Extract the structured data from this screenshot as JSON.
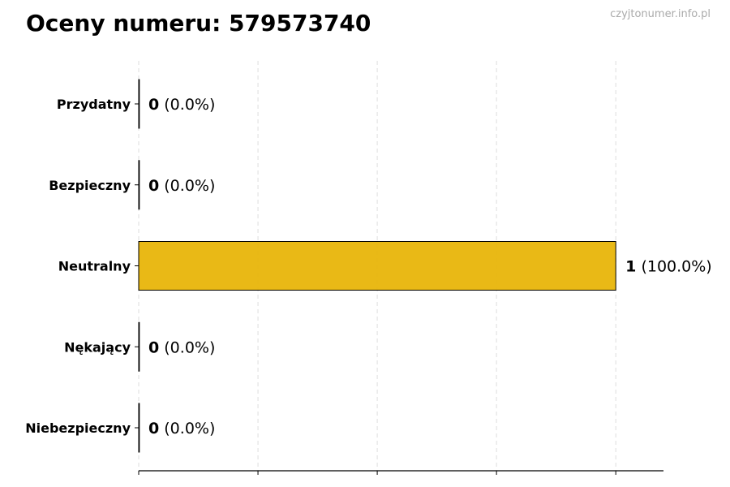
{
  "chart_data": {
    "type": "bar",
    "orientation": "horizontal",
    "title": "Oceny numeru: 579573740",
    "categories": [
      "Przydatny",
      "Bezpieczny",
      "Neutralny",
      "Nękający",
      "Niebezpieczny"
    ],
    "values": [
      0,
      0,
      1,
      0,
      0
    ],
    "value_labels": [
      "(0.0%)",
      "(0.0%)",
      "(100.0%)",
      "(0.0%)",
      "(0.0%)"
    ],
    "xlim": [
      0,
      1.1
    ],
    "xticks": [
      0,
      0.25,
      0.5,
      0.75,
      1.0
    ],
    "xtick_labels_shown": false,
    "grid": "vertical-dashed",
    "bar_color": "#E8B50A",
    "bar_edge_color": "#000000",
    "grid_color": "#dddddd"
  },
  "watermark": "czyjtonumer.info.pl"
}
